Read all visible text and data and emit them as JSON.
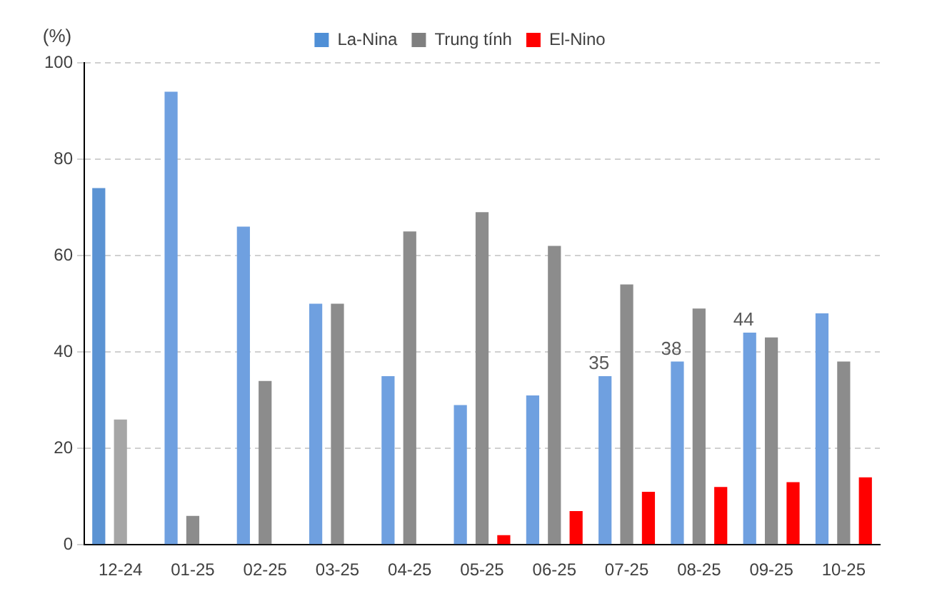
{
  "chart_data": {
    "type": "bar",
    "ylabel": "(%)",
    "categories": [
      "12-24",
      "01-25",
      "02-25",
      "03-25",
      "04-25",
      "05-25",
      "06-25",
      "07-25",
      "08-25",
      "09-25",
      "10-25"
    ],
    "series": [
      {
        "name": "La-Nina",
        "color": "#4f8fd6",
        "colors": [
          "#5b93d3",
          "#6fa0e0",
          "#6fa0e0",
          "#6fa0e0",
          "#6fa0e0",
          "#6fa0e0",
          "#6fa0e0",
          "#6fa0e0",
          "#6fa0e0",
          "#6fa0e0",
          "#6fa0e0"
        ],
        "values": [
          74,
          94,
          66,
          50,
          35,
          29,
          31,
          35,
          38,
          44,
          48
        ],
        "value_labels": [
          null,
          null,
          null,
          null,
          null,
          null,
          null,
          "35",
          "38",
          "44",
          null
        ]
      },
      {
        "name": "Trung tính",
        "color": "#7f7f7f",
        "colors": [
          "#a6a6a6",
          "#8c8c8c",
          "#8c8c8c",
          "#8c8c8c",
          "#8c8c8c",
          "#8c8c8c",
          "#8c8c8c",
          "#8c8c8c",
          "#8c8c8c",
          "#8c8c8c",
          "#8c8c8c"
        ],
        "values": [
          26,
          6,
          34,
          50,
          65,
          69,
          62,
          54,
          49,
          43,
          38
        ]
      },
      {
        "name": "El-Nino",
        "color": "#ff0000",
        "values": [
          null,
          null,
          null,
          null,
          null,
          2,
          7,
          11,
          12,
          13,
          14
        ]
      }
    ],
    "ylim": [
      0,
      100
    ],
    "yticks": [
      0,
      20,
      40,
      60,
      80,
      100
    ],
    "grid": "y",
    "legend": "top"
  }
}
